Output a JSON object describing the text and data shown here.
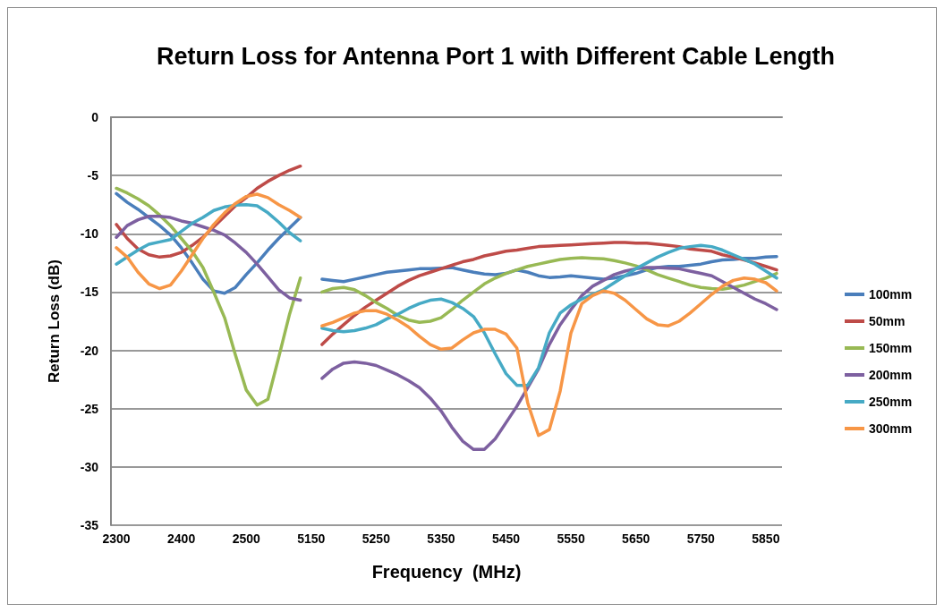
{
  "chart_data": {
    "type": "line",
    "title": "Return Loss for Antenna Port 1 with Different Cable Length",
    "xlabel": "Frequency  (MHz)",
    "ylabel": "Return Loss (dB)",
    "categories": [
      "2300",
      null,
      null,
      null,
      null,
      null,
      "2400",
      null,
      null,
      null,
      null,
      null,
      "2500",
      null,
      null,
      null,
      null,
      null,
      "5150",
      null,
      null,
      null,
      null,
      null,
      "5250",
      null,
      null,
      null,
      null,
      null,
      "5350",
      null,
      null,
      null,
      null,
      null,
      "5450",
      null,
      null,
      null,
      null,
      null,
      "5550",
      null,
      null,
      null,
      null,
      null,
      "5650",
      null,
      null,
      null,
      null,
      null,
      "5750",
      null,
      null,
      null,
      null,
      null,
      "5850",
      null
    ],
    "ylim": [
      -35,
      0
    ],
    "yticks": [
      -35,
      -30,
      -25,
      -20,
      -15,
      -10,
      -5,
      0
    ],
    "grid": "y",
    "legend": "right",
    "marker": "none",
    "line_style": "solid",
    "series": [
      {
        "name": "100mm",
        "color": "#4a7ebb",
        "values": [
          -6.55,
          -7.3,
          -7.9,
          -8.6,
          -9.3,
          -10.1,
          -11.2,
          -12.5,
          -13.9,
          -14.9,
          -15.1,
          -14.6,
          -13.5,
          -12.5,
          -11.4,
          -10.4,
          -9.5,
          -8.6,
          null,
          -13.9,
          -14.0,
          -14.1,
          -13.9,
          -13.7,
          -13.5,
          -13.3,
          -13.2,
          -13.1,
          -13.0,
          -13.0,
          -12.95,
          -12.9,
          -13.1,
          -13.3,
          -13.45,
          -13.5,
          -13.4,
          -13.1,
          -13.3,
          -13.6,
          -13.75,
          -13.7,
          -13.6,
          -13.7,
          -13.8,
          -13.9,
          -13.8,
          -13.6,
          -13.4,
          -13.1,
          -12.9,
          -12.8,
          -12.8,
          -12.7,
          -12.6,
          -12.4,
          -12.25,
          -12.2,
          -12.1,
          -12.1,
          -12.0,
          -11.95
        ]
      },
      {
        "name": "50mm",
        "color": "#be4b48",
        "values": [
          -9.2,
          -10.4,
          -11.3,
          -11.8,
          -12.0,
          -11.9,
          -11.6,
          -11.0,
          -10.3,
          -9.4,
          -8.5,
          -7.6,
          -6.9,
          -6.1,
          -5.5,
          -5.0,
          -4.55,
          -4.2,
          null,
          -19.5,
          -18.6,
          -17.8,
          -17.0,
          -16.3,
          -15.7,
          -15.1,
          -14.5,
          -14.0,
          -13.6,
          -13.3,
          -13.0,
          -12.7,
          -12.4,
          -12.2,
          -11.9,
          -11.7,
          -11.5,
          -11.4,
          -11.25,
          -11.1,
          -11.05,
          -11.0,
          -10.95,
          -10.9,
          -10.85,
          -10.8,
          -10.75,
          -10.75,
          -10.8,
          -10.8,
          -10.9,
          -11.0,
          -11.1,
          -11.3,
          -11.4,
          -11.5,
          -11.8,
          -12.0,
          -12.25,
          -12.5,
          -12.8,
          -13.1
        ]
      },
      {
        "name": "150mm",
        "color": "#98b954",
        "values": [
          -6.1,
          -6.5,
          -7.0,
          -7.6,
          -8.4,
          -9.3,
          -10.4,
          -11.5,
          -12.9,
          -15.0,
          -17.2,
          -20.4,
          -23.4,
          -24.7,
          -24.2,
          -20.6,
          -16.9,
          -13.8,
          null,
          -15.0,
          -14.7,
          -14.6,
          -14.8,
          -15.3,
          -15.9,
          -16.4,
          -17.0,
          -17.4,
          -17.6,
          -17.5,
          -17.2,
          -16.5,
          -15.7,
          -15.0,
          -14.3,
          -13.8,
          -13.4,
          -13.1,
          -12.8,
          -12.6,
          -12.4,
          -12.2,
          -12.1,
          -12.05,
          -12.1,
          -12.15,
          -12.3,
          -12.5,
          -12.75,
          -13.1,
          -13.5,
          -13.8,
          -14.1,
          -14.4,
          -14.6,
          -14.7,
          -14.75,
          -14.6,
          -14.4,
          -14.1,
          -13.8,
          -13.4
        ]
      },
      {
        "name": "200mm",
        "color": "#7d60a0",
        "values": [
          -10.3,
          -9.3,
          -8.8,
          -8.5,
          -8.5,
          -8.6,
          -8.9,
          -9.1,
          -9.4,
          -9.7,
          -10.1,
          -10.8,
          -11.6,
          -12.6,
          -13.7,
          -14.8,
          -15.5,
          -15.7,
          null,
          -22.4,
          -21.6,
          -21.1,
          -21.0,
          -21.1,
          -21.3,
          -21.7,
          -22.1,
          -22.6,
          -23.2,
          -24.1,
          -25.2,
          -26.6,
          -27.8,
          -28.5,
          -28.5,
          -27.6,
          -26.2,
          -24.8,
          -23.2,
          -21.6,
          -19.5,
          -17.8,
          -16.5,
          -15.3,
          -14.5,
          -14.0,
          -13.5,
          -13.2,
          -13.0,
          -12.9,
          -12.9,
          -12.95,
          -13.0,
          -13.2,
          -13.4,
          -13.6,
          -14.1,
          -14.6,
          -15.1,
          -15.6,
          -16.0,
          -16.5
        ]
      },
      {
        "name": "250mm",
        "color": "#46aac5",
        "values": [
          -12.6,
          -12.0,
          -11.4,
          -10.9,
          -10.7,
          -10.5,
          -9.8,
          -9.1,
          -8.6,
          -8.0,
          -7.7,
          -7.55,
          -7.5,
          -7.6,
          -8.2,
          -9.0,
          -9.9,
          -10.6,
          null,
          -18.1,
          -18.3,
          -18.4,
          -18.3,
          -18.1,
          -17.8,
          -17.3,
          -16.9,
          -16.4,
          -16.0,
          -15.7,
          -15.6,
          -15.9,
          -16.4,
          -17.1,
          -18.5,
          -20.3,
          -22.0,
          -23.0,
          -23.0,
          -21.5,
          -18.5,
          -16.8,
          -16.1,
          -15.6,
          -15.2,
          -14.8,
          -14.2,
          -13.6,
          -13.0,
          -12.5,
          -12.0,
          -11.6,
          -11.25,
          -11.1,
          -11.0,
          -11.1,
          -11.4,
          -11.8,
          -12.2,
          -12.6,
          -13.2,
          -13.8
        ]
      },
      {
        "name": "300mm",
        "color": "#f79646",
        "values": [
          -11.2,
          -12.0,
          -13.3,
          -14.3,
          -14.7,
          -14.4,
          -13.2,
          -11.8,
          -10.4,
          -9.2,
          -8.2,
          -7.4,
          -6.8,
          -6.6,
          -6.9,
          -7.5,
          -8.0,
          -8.6,
          null,
          -17.9,
          -17.6,
          -17.2,
          -16.8,
          -16.6,
          -16.6,
          -16.9,
          -17.4,
          -18.0,
          -18.8,
          -19.5,
          -19.9,
          -19.8,
          -19.1,
          -18.5,
          -18.2,
          -18.2,
          -18.6,
          -19.8,
          -24.5,
          -27.3,
          -26.8,
          -23.5,
          -18.5,
          -16.0,
          -15.3,
          -14.9,
          -15.1,
          -15.7,
          -16.5,
          -17.3,
          -17.8,
          -17.9,
          -17.5,
          -16.8,
          -16.0,
          -15.2,
          -14.5,
          -14.0,
          -13.8,
          -13.9,
          -14.2,
          -14.9
        ]
      }
    ]
  }
}
